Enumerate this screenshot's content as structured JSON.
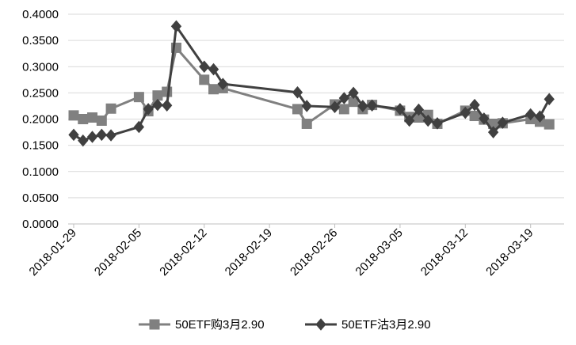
{
  "chart_data": {
    "type": "line",
    "title": "",
    "xlabel": "",
    "ylabel": "",
    "x_range": [
      "2018-01-29",
      "2018-03-22"
    ],
    "ylim": [
      0,
      0.4
    ],
    "y_ticks": [
      "0.0000",
      "0.0500",
      "0.1000",
      "0.1500",
      "0.2000",
      "0.2500",
      "0.3000",
      "0.3500",
      "0.4000"
    ],
    "x_ticks": [
      "2018-01-29",
      "2018-02-05",
      "2018-02-12",
      "2018-02-19",
      "2018-02-26",
      "2018-03-05",
      "2018-03-12",
      "2018-03-19"
    ],
    "grid": "horizontal",
    "legend_position": "bottom",
    "series": [
      {
        "name": "50ETF购3月2.90",
        "color": "#808080",
        "marker": "square",
        "points": [
          [
            "2018-01-29",
            0.207
          ],
          [
            "2018-01-30",
            0.2
          ],
          [
            "2018-01-31",
            0.203
          ],
          [
            "2018-02-01",
            0.197
          ],
          [
            "2018-02-02",
            0.22
          ],
          [
            "2018-02-05",
            0.242
          ],
          [
            "2018-02-06",
            0.215
          ],
          [
            "2018-02-07",
            0.245
          ],
          [
            "2018-02-08",
            0.252
          ],
          [
            "2018-02-09",
            0.336
          ],
          [
            "2018-02-12",
            0.275
          ],
          [
            "2018-02-13",
            0.257
          ],
          [
            "2018-02-14",
            0.259
          ],
          [
            "2018-02-22",
            0.219
          ],
          [
            "2018-02-23",
            0.191
          ],
          [
            "2018-02-26",
            0.228
          ],
          [
            "2018-02-27",
            0.219
          ],
          [
            "2018-02-28",
            0.233
          ],
          [
            "2018-03-01",
            0.219
          ],
          [
            "2018-03-02",
            0.227
          ],
          [
            "2018-03-05",
            0.216
          ],
          [
            "2018-03-06",
            0.204
          ],
          [
            "2018-03-07",
            0.203
          ],
          [
            "2018-03-08",
            0.208
          ],
          [
            "2018-03-09",
            0.191
          ],
          [
            "2018-03-12",
            0.216
          ],
          [
            "2018-03-13",
            0.206
          ],
          [
            "2018-03-14",
            0.199
          ],
          [
            "2018-03-15",
            0.191
          ],
          [
            "2018-03-16",
            0.192
          ],
          [
            "2018-03-19",
            0.2
          ],
          [
            "2018-03-20",
            0.195
          ],
          [
            "2018-03-21",
            0.19
          ]
        ]
      },
      {
        "name": "50ETF沽3月2.90",
        "color": "#404040",
        "marker": "diamond",
        "points": [
          [
            "2018-01-29",
            0.17
          ],
          [
            "2018-01-30",
            0.159
          ],
          [
            "2018-01-31",
            0.166
          ],
          [
            "2018-02-01",
            0.17
          ],
          [
            "2018-02-02",
            0.169
          ],
          [
            "2018-02-05",
            0.185
          ],
          [
            "2018-02-06",
            0.219
          ],
          [
            "2018-02-07",
            0.227
          ],
          [
            "2018-02-08",
            0.226
          ],
          [
            "2018-02-09",
            0.377
          ],
          [
            "2018-02-12",
            0.3
          ],
          [
            "2018-02-13",
            0.295
          ],
          [
            "2018-02-14",
            0.267
          ],
          [
            "2018-02-22",
            0.251
          ],
          [
            "2018-02-23",
            0.225
          ],
          [
            "2018-02-26",
            0.223
          ],
          [
            "2018-02-27",
            0.24
          ],
          [
            "2018-02-28",
            0.25
          ],
          [
            "2018-03-01",
            0.225
          ],
          [
            "2018-03-02",
            0.226
          ],
          [
            "2018-03-05",
            0.219
          ],
          [
            "2018-03-06",
            0.197
          ],
          [
            "2018-03-07",
            0.218
          ],
          [
            "2018-03-08",
            0.197
          ],
          [
            "2018-03-09",
            0.192
          ],
          [
            "2018-03-12",
            0.212
          ],
          [
            "2018-03-13",
            0.227
          ],
          [
            "2018-03-14",
            0.201
          ],
          [
            "2018-03-15",
            0.175
          ],
          [
            "2018-03-16",
            0.193
          ],
          [
            "2018-03-19",
            0.209
          ],
          [
            "2018-03-20",
            0.205
          ],
          [
            "2018-03-21",
            0.238
          ]
        ]
      }
    ]
  }
}
